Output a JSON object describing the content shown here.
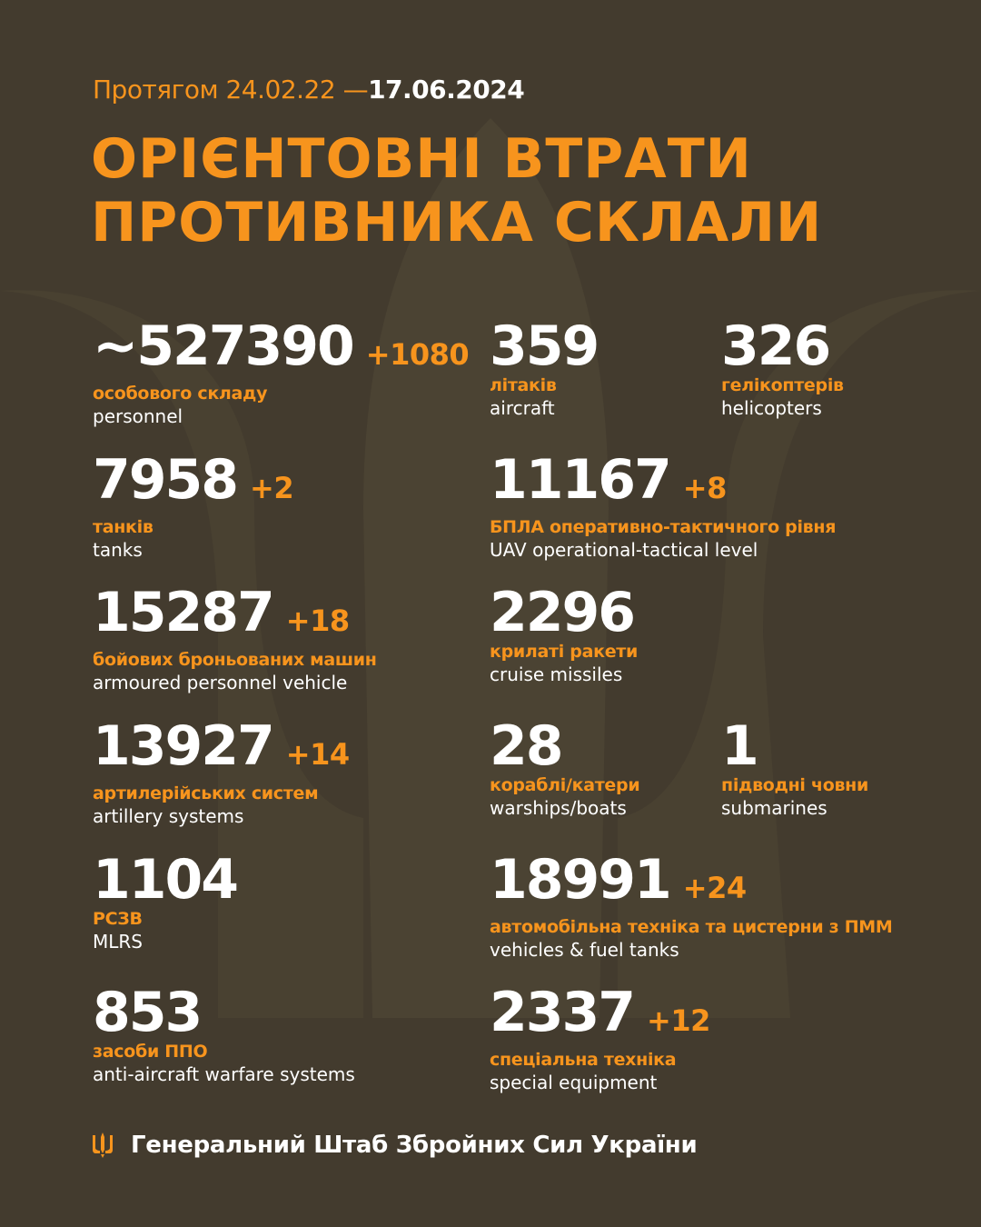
{
  "header": {
    "period_prefix": "Протягом 24.02.22 —",
    "period_end": "17.06.2024",
    "title_line1": "ОРІЄНТОВНІ ВТРАТИ",
    "title_line2": "ПРОТИВНИКА СКЛАЛИ"
  },
  "colors": {
    "background": "#433b2e",
    "accent": "#f7941d",
    "text": "#ffffff"
  },
  "items": [
    {
      "value": "~527390",
      "delta": "+1080",
      "ua": "особового складу",
      "en": "personnel"
    },
    {
      "value": "7958",
      "delta": "+2",
      "ua": "танків",
      "en": "tanks"
    },
    {
      "value": "15287",
      "delta": "+18",
      "ua": "бойових броньованих машин",
      "en": "armoured personnel vehicle"
    },
    {
      "value": "13927",
      "delta": "+14",
      "ua": "артилерійських систем",
      "en": "artillery systems"
    },
    {
      "value": "1104",
      "delta": "",
      "ua": "РСЗВ",
      "en": "MLRS"
    },
    {
      "value": "853",
      "delta": "",
      "ua": "засоби ППО",
      "en": "anti-aircraft warfare systems"
    },
    {
      "value": "359",
      "delta": "",
      "ua": "літаків",
      "en": "aircraft"
    },
    {
      "value": "326",
      "delta": "",
      "ua": "гелікоптерів",
      "en": "helicopters"
    },
    {
      "value": "11167",
      "delta": "+8",
      "ua": "БПЛА оперативно-тактичного рівня",
      "en": "UAV operational-tactical level"
    },
    {
      "value": "2296",
      "delta": "",
      "ua": "крилаті ракети",
      "en": "cruise missiles"
    },
    {
      "value": "28",
      "delta": "",
      "ua": "кораблі/катери",
      "en": "warships/boats"
    },
    {
      "value": "1",
      "delta": "",
      "ua": "підводні човни",
      "en": "submarines"
    },
    {
      "value": "18991",
      "delta": "+24",
      "ua": "автомобільна техніка та цистерни з ПММ",
      "en": "vehicles & fuel tanks"
    },
    {
      "value": "2337",
      "delta": "+12",
      "ua": "спеціальна техніка",
      "en": "special equipment"
    }
  ],
  "footer": {
    "icon": "trident-icon",
    "text": "Генеральний Штаб Збройних Сил України"
  }
}
